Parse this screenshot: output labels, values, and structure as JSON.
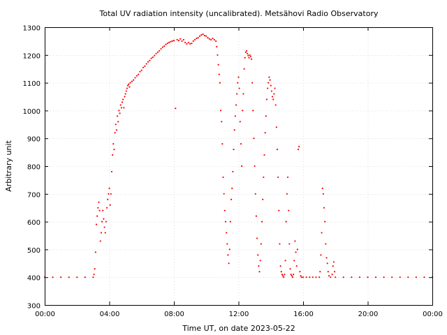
{
  "chart_data": {
    "type": "scatter",
    "title": "Total UV radiation intensity (uncalibrated). Metsähovi Radio Observatory",
    "xlabel": "Time UT, on date 2023-05-22",
    "ylabel": "Arbitrary unit",
    "xlim": [
      0,
      24
    ],
    "ylim": [
      300,
      1300
    ],
    "x_ticks": [
      {
        "value": 0,
        "label": "00:00"
      },
      {
        "value": 4,
        "label": "04:00"
      },
      {
        "value": 8,
        "label": "08:00"
      },
      {
        "value": 12,
        "label": "12:00"
      },
      {
        "value": 16,
        "label": "16:00"
      },
      {
        "value": 20,
        "label": "20:00"
      },
      {
        "value": 24,
        "label": "00:00"
      }
    ],
    "y_ticks": [
      300,
      400,
      500,
      600,
      700,
      800,
      900,
      1000,
      1100,
      1200,
      1300
    ],
    "grid": true,
    "marker_color": "#ff0000",
    "series": [
      {
        "points": [
          [
            0.0,
            400
          ],
          [
            0.5,
            400
          ],
          [
            1.0,
            400
          ],
          [
            1.5,
            400
          ],
          [
            2.0,
            400
          ],
          [
            2.5,
            400
          ],
          [
            3.0,
            400
          ],
          [
            3.05,
            410
          ],
          [
            3.1,
            430
          ],
          [
            3.15,
            490
          ],
          [
            3.2,
            590
          ],
          [
            3.25,
            620
          ],
          [
            3.3,
            650
          ],
          [
            3.35,
            670
          ],
          [
            3.4,
            640
          ],
          [
            3.45,
            530
          ],
          [
            3.5,
            560
          ],
          [
            3.55,
            600
          ],
          [
            3.6,
            640
          ],
          [
            3.65,
            610
          ],
          [
            3.7,
            580
          ],
          [
            3.75,
            560
          ],
          [
            3.8,
            600
          ],
          [
            3.85,
            650
          ],
          [
            3.9,
            680
          ],
          [
            3.95,
            700
          ],
          [
            4.0,
            720
          ],
          [
            4.05,
            660
          ],
          [
            4.1,
            700
          ],
          [
            4.15,
            780
          ],
          [
            4.2,
            840
          ],
          [
            4.25,
            880
          ],
          [
            4.3,
            860
          ],
          [
            4.35,
            920
          ],
          [
            4.4,
            950
          ],
          [
            4.45,
            930
          ],
          [
            4.5,
            980
          ],
          [
            4.55,
            960
          ],
          [
            4.6,
            1000
          ],
          [
            4.65,
            990
          ],
          [
            4.7,
            1020
          ],
          [
            4.75,
            1010
          ],
          [
            4.8,
            1030
          ],
          [
            4.85,
            1040
          ],
          [
            4.9,
            1010
          ],
          [
            4.95,
            1050
          ],
          [
            5.0,
            1060
          ],
          [
            5.05,
            1070
          ],
          [
            5.1,
            1080
          ],
          [
            5.15,
            1090
          ],
          [
            5.2,
            1095
          ],
          [
            5.25,
            1085
          ],
          [
            5.3,
            1100
          ],
          [
            5.4,
            1105
          ],
          [
            5.5,
            1110
          ],
          [
            5.6,
            1118
          ],
          [
            5.7,
            1125
          ],
          [
            5.8,
            1130
          ],
          [
            5.9,
            1140
          ],
          [
            6.0,
            1145
          ],
          [
            6.1,
            1155
          ],
          [
            6.2,
            1160
          ],
          [
            6.3,
            1168
          ],
          [
            6.4,
            1175
          ],
          [
            6.5,
            1180
          ],
          [
            6.6,
            1188
          ],
          [
            6.7,
            1192
          ],
          [
            6.8,
            1198
          ],
          [
            6.9,
            1205
          ],
          [
            7.0,
            1210
          ],
          [
            7.1,
            1215
          ],
          [
            7.2,
            1222
          ],
          [
            7.3,
            1228
          ],
          [
            7.4,
            1232
          ],
          [
            7.5,
            1238
          ],
          [
            7.6,
            1242
          ],
          [
            7.7,
            1245
          ],
          [
            7.8,
            1248
          ],
          [
            7.9,
            1250
          ],
          [
            8.0,
            1252
          ],
          [
            8.1,
            1008
          ],
          [
            8.2,
            1255
          ],
          [
            8.3,
            1252
          ],
          [
            8.4,
            1258
          ],
          [
            8.5,
            1250
          ],
          [
            8.6,
            1255
          ],
          [
            8.7,
            1245
          ],
          [
            8.8,
            1240
          ],
          [
            8.9,
            1245
          ],
          [
            9.0,
            1240
          ],
          [
            9.1,
            1242
          ],
          [
            9.2,
            1250
          ],
          [
            9.3,
            1255
          ],
          [
            9.4,
            1260
          ],
          [
            9.5,
            1262
          ],
          [
            9.6,
            1268
          ],
          [
            9.7,
            1272
          ],
          [
            9.8,
            1275
          ],
          [
            9.9,
            1270
          ],
          [
            10.0,
            1268
          ],
          [
            10.1,
            1262
          ],
          [
            10.2,
            1258
          ],
          [
            10.3,
            1255
          ],
          [
            10.4,
            1260
          ],
          [
            10.5,
            1255
          ],
          [
            10.6,
            1250
          ],
          [
            10.65,
            1230
          ],
          [
            10.7,
            1200
          ],
          [
            10.75,
            1165
          ],
          [
            10.8,
            1130
          ],
          [
            10.85,
            1100
          ],
          [
            10.9,
            1000
          ],
          [
            10.95,
            960
          ],
          [
            11.0,
            880
          ],
          [
            11.05,
            760
          ],
          [
            11.1,
            700
          ],
          [
            11.15,
            640
          ],
          [
            11.2,
            600
          ],
          [
            11.25,
            560
          ],
          [
            11.3,
            520
          ],
          [
            11.35,
            480
          ],
          [
            11.4,
            450
          ],
          [
            11.45,
            500
          ],
          [
            11.5,
            600
          ],
          [
            11.55,
            680
          ],
          [
            11.6,
            720
          ],
          [
            11.65,
            780
          ],
          [
            11.7,
            860
          ],
          [
            11.75,
            930
          ],
          [
            11.8,
            980
          ],
          [
            11.85,
            1020
          ],
          [
            11.9,
            1060
          ],
          [
            11.95,
            1100
          ],
          [
            12.0,
            1120
          ],
          [
            12.05,
            1080
          ],
          [
            12.1,
            960
          ],
          [
            12.15,
            880
          ],
          [
            12.2,
            800
          ],
          [
            12.25,
            1000
          ],
          [
            12.3,
            1060
          ],
          [
            12.35,
            1150
          ],
          [
            12.4,
            1190
          ],
          [
            12.45,
            1210
          ],
          [
            12.5,
            1215
          ],
          [
            12.55,
            1205
          ],
          [
            12.6,
            1198
          ],
          [
            12.65,
            1190
          ],
          [
            12.7,
            1200
          ],
          [
            12.75,
            1195
          ],
          [
            12.8,
            1185
          ],
          [
            12.85,
            1100
          ],
          [
            12.9,
            1000
          ],
          [
            12.95,
            900
          ],
          [
            13.0,
            800
          ],
          [
            13.05,
            700
          ],
          [
            13.1,
            620
          ],
          [
            13.15,
            540
          ],
          [
            13.2,
            480
          ],
          [
            13.25,
            440
          ],
          [
            13.3,
            420
          ],
          [
            13.35,
            460
          ],
          [
            13.4,
            520
          ],
          [
            13.45,
            600
          ],
          [
            13.5,
            680
          ],
          [
            13.55,
            760
          ],
          [
            13.6,
            840
          ],
          [
            13.65,
            920
          ],
          [
            13.7,
            980
          ],
          [
            13.75,
            1040
          ],
          [
            13.8,
            1080
          ],
          [
            13.85,
            1100
          ],
          [
            13.9,
            1120
          ],
          [
            13.95,
            1110
          ],
          [
            14.0,
            1090
          ],
          [
            14.05,
            1070
          ],
          [
            14.1,
            1050
          ],
          [
            14.15,
            1040
          ],
          [
            14.2,
            1060
          ],
          [
            14.25,
            1080
          ],
          [
            14.3,
            1020
          ],
          [
            14.35,
            940
          ],
          [
            14.4,
            860
          ],
          [
            14.45,
            760
          ],
          [
            14.5,
            640
          ],
          [
            14.55,
            520
          ],
          [
            14.6,
            440
          ],
          [
            14.65,
            420
          ],
          [
            14.7,
            410
          ],
          [
            14.75,
            405
          ],
          [
            14.8,
            400
          ],
          [
            14.85,
            410
          ],
          [
            14.9,
            460
          ],
          [
            14.95,
            600
          ],
          [
            15.0,
            700
          ],
          [
            15.05,
            760
          ],
          [
            15.1,
            640
          ],
          [
            15.15,
            520
          ],
          [
            15.2,
            430
          ],
          [
            15.25,
            410
          ],
          [
            15.3,
            405
          ],
          [
            15.35,
            400
          ],
          [
            15.4,
            410
          ],
          [
            15.45,
            460
          ],
          [
            15.5,
            530
          ],
          [
            15.55,
            490
          ],
          [
            15.6,
            440
          ],
          [
            15.65,
            500
          ],
          [
            15.7,
            860
          ],
          [
            15.75,
            870
          ],
          [
            15.8,
            420
          ],
          [
            15.85,
            405
          ],
          [
            15.9,
            400
          ],
          [
            16.0,
            400
          ],
          [
            16.2,
            400
          ],
          [
            16.4,
            400
          ],
          [
            16.6,
            400
          ],
          [
            16.8,
            400
          ],
          [
            17.0,
            400
          ],
          [
            17.05,
            420
          ],
          [
            17.1,
            480
          ],
          [
            17.15,
            560
          ],
          [
            17.2,
            720
          ],
          [
            17.25,
            700
          ],
          [
            17.3,
            650
          ],
          [
            17.35,
            600
          ],
          [
            17.4,
            520
          ],
          [
            17.45,
            470
          ],
          [
            17.5,
            450
          ],
          [
            17.55,
            420
          ],
          [
            17.6,
            405
          ],
          [
            17.7,
            400
          ],
          [
            17.8,
            410
          ],
          [
            17.85,
            440
          ],
          [
            17.9,
            455
          ],
          [
            17.95,
            420
          ],
          [
            18.0,
            400
          ],
          [
            18.5,
            400
          ],
          [
            19.0,
            400
          ],
          [
            19.5,
            400
          ],
          [
            20.0,
            400
          ],
          [
            20.5,
            400
          ],
          [
            21.0,
            400
          ],
          [
            21.5,
            400
          ],
          [
            22.0,
            400
          ],
          [
            22.5,
            400
          ],
          [
            23.0,
            400
          ],
          [
            23.5,
            400
          ],
          [
            24.0,
            400
          ]
        ]
      }
    ]
  }
}
